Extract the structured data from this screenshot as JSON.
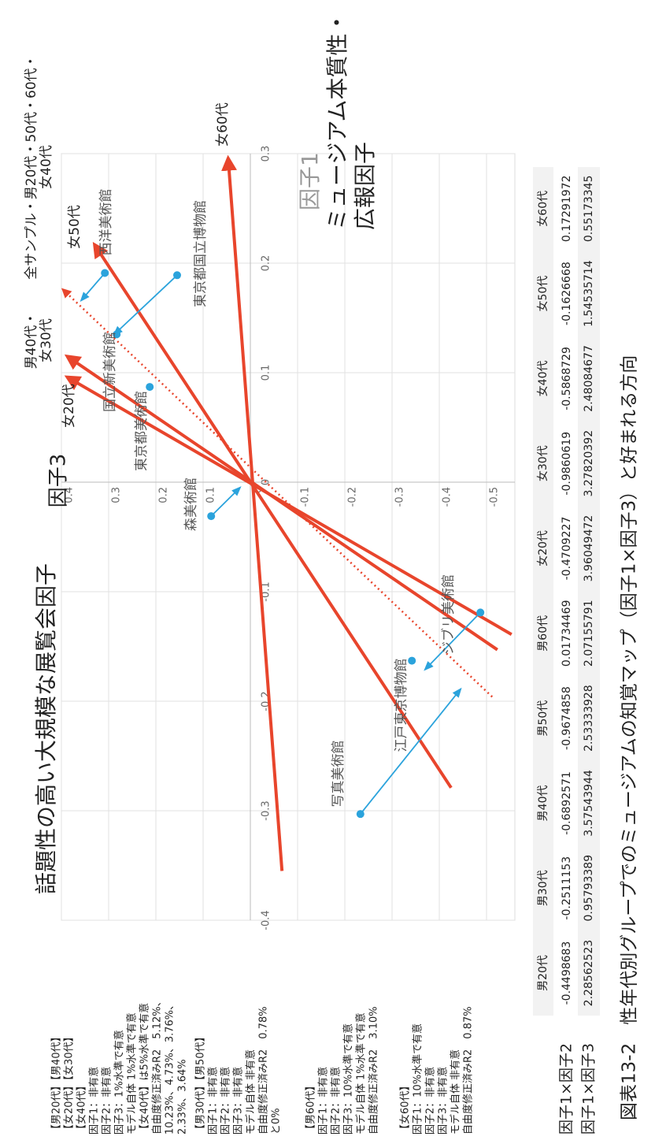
{
  "caption": "図表13-2　性年代別グループでのミュージアムの知覚マップ（因子1×因子3）と好まれる方向",
  "notes": [
    [
      "【男20代】【男40代】",
      "【女20代】【女30代】",
      "【女40代】",
      "因子1：非有意",
      "因子2：非有意",
      "因子3：1%水準で有意",
      "モデル自体 1%水準で有意",
      "【女40代】は5%水準で有意",
      "自由度修正済みR2　5.12%、",
      "10.23%、4.73%、3.76%、",
      "2.33%、3.64%"
    ],
    [
      "【男30代】【男50代】",
      "因子1：非有意",
      "因子2：非有意",
      "因子3：非有意",
      "モデル自体 非有意",
      "自由度修正済みR2　0.78%",
      "と0%"
    ],
    [
      "【男60代】",
      "因子1：非有意",
      "因子2：非有意",
      "因子3：10%水準で有意",
      "モデル自体 1%水準で有意",
      "自由度修正済みR2　3.10%"
    ],
    [
      "【女60代】",
      "因子1：10%水準で有意",
      "因子2：非有意",
      "因子3：非有意",
      "モデル自体 非有意",
      "自由度修正済みR2　0.87%"
    ]
  ],
  "table": {
    "columns": [
      "男20代",
      "男30代",
      "男40代",
      "男50代",
      "男60代",
      "女20代",
      "女30代",
      "女40代",
      "女50代",
      "女60代"
    ],
    "rows": [
      {
        "label": "因子1×因子2",
        "values": [
          -0.4498683,
          -0.2511153,
          -0.6892571,
          -0.9674858,
          0.01734469,
          -0.4709227,
          -0.9860619,
          -0.5868729,
          -0.1626668,
          0.17291972
        ]
      },
      {
        "label": "因子1×因子3",
        "values": [
          2.28562523,
          0.95793389,
          3.57543944,
          2.53333928,
          2.07155791,
          3.96049472,
          3.27820392,
          2.48084677,
          1.54535714,
          0.55173345
        ]
      }
    ]
  },
  "chart_data": {
    "type": "vector_map",
    "x_axis_title": "因子1",
    "x_axis_subtitle": [
      "ミュージアム本質性・",
      "広報因子"
    ],
    "y_axis_title": "因子3",
    "y_axis_subtitle": "話題性の高い大規模な展覧会因子",
    "xlim": [
      -0.4,
      0.3
    ],
    "xticks": [
      -0.4,
      -0.3,
      -0.2,
      -0.1,
      0,
      0.1,
      0.2,
      0.3
    ],
    "ylim": [
      -0.56,
      0.4
    ],
    "yticks": [
      -0.5,
      -0.4,
      -0.3,
      -0.2,
      -0.1,
      0,
      0.1,
      0.2,
      0.3,
      0.4
    ],
    "grid": true,
    "vector_color": "#e8452c",
    "point_color": "#2ba3dc",
    "label_color": "#555555",
    "vectors": [
      {
        "label": [
          "女60代"
        ],
        "tail": [
          -0.355,
          -0.067
        ],
        "head": [
          0.296,
          0.047
        ],
        "style": "solid"
      },
      {
        "label": [
          "女50代"
        ],
        "tail": [
          -0.279,
          -0.425
        ],
        "head": [
          0.217,
          0.33
        ],
        "style": "solid"
      },
      {
        "label": [
          "男40代・",
          "女30代"
        ],
        "tail": [
          -0.153,
          -0.523
        ],
        "head": [
          0.115,
          0.388
        ],
        "style": "solid"
      },
      {
        "label": [
          "女20代"
        ],
        "tail": [
          -0.139,
          -0.553
        ],
        "head": [
          0.096,
          0.388
        ],
        "style": "solid"
      },
      {
        "label": [
          "全サンプル・男20代・50代・60代・",
          "女40代"
        ],
        "tail": [
          -0.196,
          -0.512
        ],
        "head": [
          0.176,
          0.397
        ],
        "style": "dotted"
      }
    ],
    "points": [
      {
        "name": "西洋美術館",
        "x": 0.191,
        "y": 0.308,
        "arrow": [
          0.166,
          0.358
        ]
      },
      {
        "name": "東京都国立博物館",
        "x": 0.189,
        "y": 0.155,
        "arrow": [
          0.135,
          0.288
        ]
      },
      {
        "name": "国立新美術館",
        "x": 0.135,
        "y": 0.283
      },
      {
        "name": "東京都美術館",
        "x": 0.087,
        "y": 0.213
      },
      {
        "name": "森美術館",
        "x": -0.031,
        "y": 0.083,
        "arrow": [
          -0.005,
          0.022
        ]
      },
      {
        "name": "江戸東京博物館",
        "x": -0.163,
        "y": -0.342
      },
      {
        "name": "ジブリ美術館",
        "x": -0.119,
        "y": -0.487,
        "arrow": [
          -0.171,
          -0.37
        ]
      },
      {
        "name": "写真美術館",
        "x": -0.303,
        "y": -0.233,
        "arrow": [
          -0.189,
          -0.445
        ]
      }
    ]
  }
}
